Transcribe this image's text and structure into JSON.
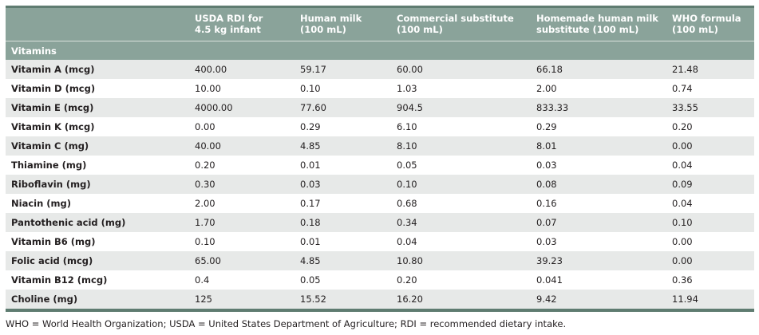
{
  "table": {
    "headers": [
      "",
      "USDA RDI for\n4.5 kg infant",
      "Human milk\n(100 mL)",
      "Commercial substitute\n(100 mL)",
      "Homemade human milk\nsubstitute (100 mL)",
      "WHO formula\n(100 mL)"
    ],
    "header_lines": [
      [
        "",
        ""
      ],
      [
        "USDA RDI for",
        "4.5 kg infant"
      ],
      [
        "Human milk",
        "(100 mL)"
      ],
      [
        "Commercial substitute",
        "(100 mL)"
      ],
      [
        "Homemade human milk",
        "substitute (100 mL)"
      ],
      [
        "WHO formula",
        "(100 mL)"
      ]
    ],
    "section": "Vitamins",
    "rows": [
      [
        "Vitamin A (mcg)",
        "400.00",
        "59.17",
        "60.00",
        "66.18",
        "21.48"
      ],
      [
        "Vitamin D (mcg)",
        "10.00",
        "0.10",
        "1.03",
        "2.00",
        "0.74"
      ],
      [
        "Vitamin E (mcg)",
        "4000.00",
        "77.60",
        "904.5",
        "833.33",
        "33.55"
      ],
      [
        "Vitamin K (mcg)",
        "0.00",
        "0.29",
        "6.10",
        "0.29",
        "0.20"
      ],
      [
        "Vitamin C (mg)",
        "40.00",
        "4.85",
        "8.10",
        "8.01",
        "0.00"
      ],
      [
        "Thiamine (mg)",
        "0.20",
        "0.01",
        "0.05",
        "0.03",
        "0.04"
      ],
      [
        "Riboflavin (mg)",
        "0.30",
        "0.03",
        "0.10",
        "0.08",
        "0.09"
      ],
      [
        "Niacin (mg)",
        "2.00",
        "0.17",
        "0.68",
        "0.16",
        "0.04"
      ],
      [
        "Pantothenic acid (mg)",
        "1.70",
        "0.18",
        "0.34",
        "0.07",
        "0.10"
      ],
      [
        "Vitamin B6 (mg)",
        "0.10",
        "0.01",
        "0.04",
        "0.03",
        "0.00"
      ],
      [
        "Folic acid (mcg)",
        "65.00",
        "4.85",
        "10.80",
        "39.23",
        "0.00"
      ],
      [
        "Vitamin B12 (mcg)",
        "0.4",
        "0.05",
        "0.20",
        "0.041",
        "0.36"
      ],
      [
        "Choline (mg)",
        "125",
        "15.52",
        "16.20",
        "9.42",
        "11.94"
      ]
    ]
  },
  "footnote": "WHO = World Health Organization; USDA = United States Department of Agriculture; RDI = recommended dietary intake.",
  "colors": {
    "header_bg": "#8aa39a",
    "border_dark": "#5f7c71",
    "row_alt": "#e7e9e8"
  }
}
